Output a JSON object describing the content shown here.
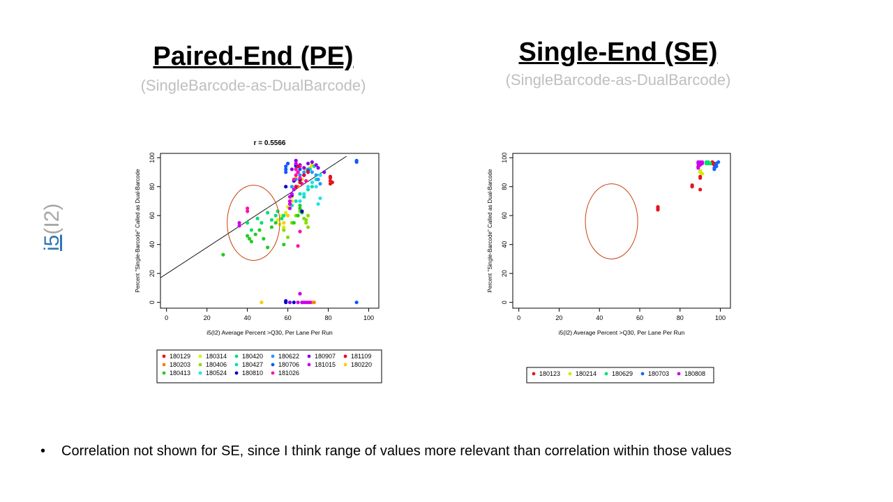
{
  "slide": {
    "left_title": "Paired-End (PE)",
    "left_subtitle": "(SingleBarcode-as-DualBarcode)",
    "right_title": "Single-End (SE)",
    "right_subtitle": "(SingleBarcode-as-DualBarcode)",
    "side_label_i5": "i5",
    "side_label_i2": "(I2)",
    "bullet_text": "Correlation not shown for SE, since I think range of values more relevant than correlation within those values"
  },
  "chart_data": [
    {
      "type": "scatter",
      "title": "r = 0.5566",
      "xlabel": "i5(I2) Average Percent >Q30, Per Lane Per Run",
      "ylabel": "Percent \"Single-Barcode\" Called as Dual-Barcode",
      "xlim": [
        -3,
        105
      ],
      "ylim": [
        -4,
        103
      ],
      "xticks": [
        "0",
        "20",
        "40",
        "60",
        "80",
        "100"
      ],
      "yticks": [
        "0",
        "20",
        "40",
        "60",
        "80",
        "100"
      ],
      "legend_position": "bottom",
      "fit_line": {
        "x": [
          -3,
          89
        ],
        "y": [
          17,
          101
        ]
      },
      "ellipse": {
        "cx": 43,
        "cy": 55,
        "rx": 13,
        "ry": 26
      },
      "series": [
        {
          "name": "180129",
          "color": "#e6141e",
          "points": [
            [
              81,
              82
            ],
            [
              81,
              84
            ],
            [
              81,
              86
            ],
            [
              81,
              87
            ],
            [
              82,
              83
            ]
          ]
        },
        {
          "name": "180203",
          "color": "#ff7f00",
          "points": [
            [
              65,
              80
            ],
            [
              66,
              84
            ],
            [
              67,
              0
            ],
            [
              70,
              0
            ],
            [
              72,
              0
            ],
            [
              73,
              0
            ]
          ]
        },
        {
          "name": "180220",
          "color": "#ffcc00",
          "points": [
            [
              47,
              0
            ],
            [
              58,
              55
            ],
            [
              60,
              60
            ],
            [
              62,
              70
            ],
            [
              64,
              86
            ],
            [
              65,
              90
            ],
            [
              67,
              85
            ],
            [
              69,
              92
            ],
            [
              71,
              93
            ],
            [
              72,
              95
            ]
          ]
        },
        {
          "name": "180314",
          "color": "#ddee00",
          "points": [
            [
              55,
              57
            ],
            [
              57,
              60
            ],
            [
              59,
              62
            ],
            [
              60,
              66
            ],
            [
              61,
              70
            ],
            [
              62,
              73
            ],
            [
              58,
              52
            ],
            [
              56,
              54
            ]
          ]
        },
        {
          "name": "180406",
          "color": "#88dd00",
          "points": [
            [
              58,
              50
            ],
            [
              60,
              45
            ],
            [
              62,
              55
            ],
            [
              64,
              60
            ],
            [
              66,
              63
            ],
            [
              68,
              58
            ],
            [
              69,
              55
            ],
            [
              70,
              52
            ],
            [
              69,
              57
            ],
            [
              70,
              60
            ]
          ]
        },
        {
          "name": "180413",
          "color": "#22cc22",
          "points": [
            [
              28,
              33
            ],
            [
              40,
              46
            ],
            [
              41,
              44
            ],
            [
              42,
              42
            ],
            [
              44,
              47
            ],
            [
              46,
              50
            ],
            [
              48,
              44
            ],
            [
              50,
              38
            ],
            [
              52,
              52
            ],
            [
              54,
              55
            ],
            [
              58,
              40
            ],
            [
              63,
              55
            ],
            [
              65,
              60
            ],
            [
              66,
              65
            ],
            [
              67,
              62
            ],
            [
              66,
              67
            ]
          ]
        },
        {
          "name": "180420",
          "color": "#00e070",
          "points": [
            [
              40,
              55
            ],
            [
              42,
              50
            ],
            [
              45,
              58
            ],
            [
              47,
              55
            ],
            [
              50,
              62
            ],
            [
              52,
              57
            ],
            [
              54,
              60
            ],
            [
              55,
              63
            ],
            [
              57,
              58
            ],
            [
              58,
              60
            ]
          ]
        },
        {
          "name": "180427",
          "color": "#00e0b0",
          "points": [
            [
              62,
              67
            ],
            [
              64,
              70
            ],
            [
              66,
              75
            ],
            [
              68,
              73
            ],
            [
              70,
              78
            ],
            [
              72,
              80
            ],
            [
              74,
              85
            ],
            [
              76,
              88
            ],
            [
              71,
              92
            ],
            [
              73,
              94
            ]
          ]
        },
        {
          "name": "180524",
          "color": "#22e0f0",
          "points": [
            [
              66,
              70
            ],
            [
              68,
              75
            ],
            [
              70,
              80
            ],
            [
              72,
              83
            ],
            [
              74,
              80
            ],
            [
              75,
              85
            ],
            [
              76,
              88
            ],
            [
              75,
              68
            ],
            [
              76,
              72
            ]
          ]
        },
        {
          "name": "180622",
          "color": "#2299ff",
          "points": [
            [
              62,
              80
            ],
            [
              64,
              85
            ],
            [
              66,
              88
            ],
            [
              68,
              90
            ],
            [
              70,
              92
            ],
            [
              72,
              90
            ],
            [
              74,
              88
            ],
            [
              75,
              85
            ],
            [
              76,
              82
            ]
          ]
        },
        {
          "name": "180706",
          "color": "#1155ff",
          "points": [
            [
              59,
              90
            ],
            [
              59,
              92
            ],
            [
              59,
              94
            ],
            [
              60,
              96
            ],
            [
              64,
              94
            ],
            [
              66,
              92
            ],
            [
              68,
              88
            ],
            [
              70,
              91
            ],
            [
              94,
              97
            ],
            [
              94,
              98
            ],
            [
              94,
              0
            ]
          ]
        },
        {
          "name": "180810",
          "color": "#0000cc",
          "points": [
            [
              59,
              0
            ],
            [
              59,
              1
            ],
            [
              59,
              80
            ],
            [
              62,
              74
            ],
            [
              63,
              0
            ],
            [
              63,
              84
            ],
            [
              64,
              95
            ],
            [
              65,
              90
            ],
            [
              66,
              85
            ],
            [
              67,
              63
            ]
          ]
        },
        {
          "name": "180907",
          "color": "#8800ee",
          "points": [
            [
              61,
              0
            ],
            [
              62,
              92
            ],
            [
              64,
              98
            ],
            [
              66,
              95
            ],
            [
              68,
              93
            ],
            [
              70,
              96
            ],
            [
              72,
              97
            ],
            [
              74,
              95
            ],
            [
              75,
              93
            ],
            [
              78,
              90
            ]
          ]
        },
        {
          "name": "181015",
          "color": "#cc00ee",
          "points": [
            [
              36,
              53
            ],
            [
              36,
              55
            ],
            [
              61,
              65
            ],
            [
              61,
              70
            ],
            [
              61,
              73
            ],
            [
              61,
              68
            ],
            [
              62,
              75
            ],
            [
              63,
              78
            ],
            [
              64,
              80
            ],
            [
              64,
              96
            ],
            [
              65,
              0
            ],
            [
              66,
              6
            ],
            [
              67,
              0
            ],
            [
              68,
              0
            ],
            [
              69,
              0
            ],
            [
              70,
              0
            ],
            [
              71,
              0
            ]
          ]
        },
        {
          "name": "181026",
          "color": "#ff10b0",
          "points": [
            [
              40,
              63
            ],
            [
              40,
              65
            ],
            [
              63,
              85
            ],
            [
              64,
              88
            ],
            [
              64,
              92
            ],
            [
              65,
              90
            ],
            [
              66,
              86
            ],
            [
              66,
              94
            ],
            [
              67,
              82
            ],
            [
              68,
              88
            ],
            [
              69,
              84
            ],
            [
              65,
              39
            ],
            [
              66,
              49
            ]
          ]
        },
        {
          "name": "181109",
          "color": "#e3003a",
          "points": [
            [
              64,
              80
            ],
            [
              66,
              83
            ],
            [
              68,
              88
            ],
            [
              65,
              94
            ],
            [
              70,
              90
            ]
          ]
        }
      ],
      "legend_order": [
        "180129",
        "180314",
        "180420",
        "180622",
        "180907",
        "181109",
        "180203",
        "180406",
        "180427",
        "180706",
        "181015",
        "180220",
        "180413",
        "180524",
        "180810",
        "181026"
      ]
    },
    {
      "type": "scatter",
      "title": "",
      "xlabel": "i5(I2) Average Percent >Q30, Per Lane Per Run",
      "ylabel": "Percent \"Single-Barcode\" Called as Dual-Barcode",
      "xlim": [
        -3,
        105
      ],
      "ylim": [
        -4,
        103
      ],
      "xticks": [
        "0",
        "20",
        "40",
        "60",
        "80",
        "100"
      ],
      "yticks": [
        "0",
        "20",
        "40",
        "60",
        "80",
        "100"
      ],
      "legend_position": "bottom",
      "ellipse": {
        "cx": 46,
        "cy": 56,
        "rx": 13,
        "ry": 26
      },
      "series": [
        {
          "name": "180123",
          "color": "#e6141e",
          "points": [
            [
              69,
              64
            ],
            [
              69,
              65
            ],
            [
              69,
              66
            ],
            [
              86,
              80
            ],
            [
              86,
              81
            ],
            [
              90,
              78
            ],
            [
              90,
              86
            ],
            [
              90,
              87
            ],
            [
              96,
              96
            ],
            [
              96,
              97
            ],
            [
              97,
              95
            ],
            [
              97,
              96
            ]
          ]
        },
        {
          "name": "180214",
          "color": "#ccee00",
          "points": [
            [
              90,
              90
            ],
            [
              90,
              91
            ],
            [
              91,
              89
            ]
          ]
        },
        {
          "name": "180629",
          "color": "#00e070",
          "points": [
            [
              93,
              96
            ],
            [
              93,
              97
            ],
            [
              94,
              96
            ],
            [
              94,
              97
            ],
            [
              95,
              96
            ]
          ]
        },
        {
          "name": "180703",
          "color": "#1166ff",
          "points": [
            [
              97,
              92
            ],
            [
              97,
              93
            ],
            [
              98,
              94
            ],
            [
              98,
              96
            ],
            [
              99,
              97
            ],
            [
              98,
              95
            ]
          ]
        },
        {
          "name": "180808",
          "color": "#cc00ee",
          "points": [
            [
              89,
              93
            ],
            [
              89,
              94
            ],
            [
              89,
              96
            ],
            [
              89,
              97
            ],
            [
              90,
              95
            ],
            [
              90,
              97
            ],
            [
              91,
              96
            ],
            [
              91,
              97
            ]
          ]
        }
      ],
      "legend_order": [
        "180123",
        "180214",
        "180629",
        "180703",
        "180808"
      ]
    }
  ]
}
